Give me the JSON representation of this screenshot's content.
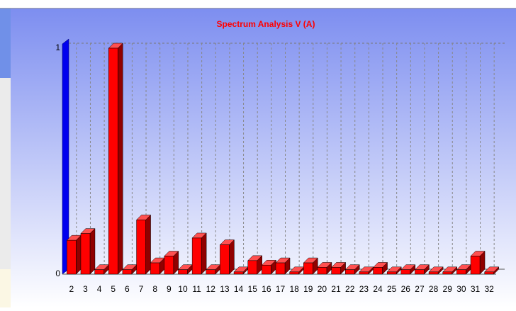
{
  "chart_data": {
    "type": "bar3d",
    "title": "Spectrum Analysis V (A)",
    "categories": [
      "2",
      "3",
      "4",
      "5",
      "6",
      "7",
      "8",
      "9",
      "10",
      "11",
      "12",
      "13",
      "14",
      "15",
      "16",
      "17",
      "18",
      "19",
      "20",
      "21",
      "22",
      "23",
      "24",
      "25",
      "26",
      "27",
      "28",
      "29",
      "30",
      "31",
      "32"
    ],
    "values": [
      0.15,
      0.18,
      0.02,
      1.0,
      0.02,
      0.24,
      0.05,
      0.08,
      0.02,
      0.16,
      0.02,
      0.13,
      0.01,
      0.06,
      0.04,
      0.05,
      0.01,
      0.05,
      0.03,
      0.03,
      0.02,
      0.01,
      0.03,
      0.01,
      0.02,
      0.02,
      0.01,
      0.01,
      0.02,
      0.08,
      0.01
    ],
    "color": "#ff0000",
    "ylim": [
      0,
      1
    ],
    "yticks": [
      0,
      1
    ],
    "grid": true
  }
}
